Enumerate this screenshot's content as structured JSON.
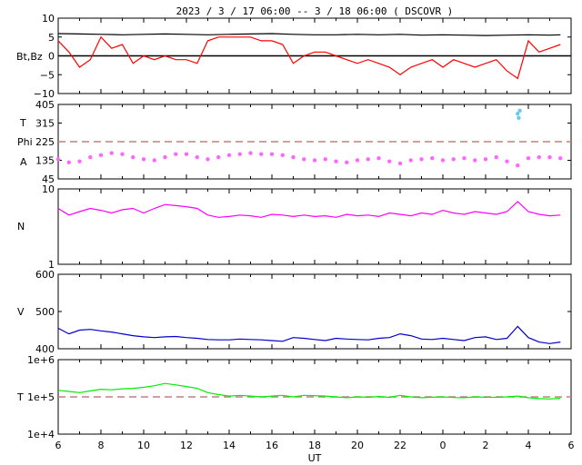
{
  "chart_data": {
    "type": "line",
    "title": "2023 /  3 / 17  06:00 -- 3 / 18  06:00 ( DSCOVR )",
    "xlabel": "UT",
    "x_ticks": [
      "6",
      "8",
      "10",
      "12",
      "14",
      "16",
      "18",
      "20",
      "22",
      "0",
      "2",
      "4",
      "6"
    ],
    "x_range_hours": [
      6,
      30
    ],
    "panels": [
      {
        "id": "mag",
        "ylabel": "Bt,Bz",
        "ylim": [
          -10,
          10
        ],
        "yticks": [
          "10",
          "5",
          "0",
          "−5",
          "−10"
        ],
        "ytick_values": [
          10,
          5,
          0,
          -5,
          -10
        ],
        "reference_lines": [
          {
            "y": 0,
            "style": "solid",
            "color": "#000000"
          }
        ],
        "series": [
          {
            "name": "Bt",
            "color": "#000000",
            "x": [
              6,
              7,
              8,
              9,
              10,
              11,
              12,
              13,
              14,
              15,
              16,
              17,
              18,
              19,
              20,
              21,
              22,
              23,
              24,
              25,
              26,
              27,
              28,
              29,
              29.5
            ],
            "values": [
              5.9,
              5.8,
              5.7,
              5.6,
              5.7,
              5.8,
              5.7,
              5.6,
              5.7,
              5.8,
              5.9,
              5.7,
              5.6,
              5.6,
              5.7,
              5.6,
              5.7,
              5.5,
              5.6,
              5.5,
              5.4,
              5.5,
              5.6,
              5.5,
              5.6
            ]
          },
          {
            "name": "Bz",
            "color": "#ff0000",
            "x": [
              6,
              6.5,
              7,
              7.5,
              8,
              8.5,
              9,
              9.5,
              10,
              10.5,
              11,
              11.5,
              12,
              12.5,
              13,
              13.5,
              14,
              14.5,
              15,
              15.5,
              16,
              16.5,
              17,
              17.5,
              18,
              18.5,
              19,
              19.5,
              20,
              20.5,
              21,
              21.5,
              22,
              22.5,
              23,
              23.5,
              24,
              24.5,
              25,
              25.5,
              26,
              26.5,
              27,
              27.5,
              28,
              28.5,
              29,
              29.5
            ],
            "values": [
              4,
              1,
              -3,
              -1,
              5,
              2,
              3,
              -2,
              0,
              -1,
              0,
              -1,
              -1,
              -2,
              4,
              5,
              5,
              5,
              5,
              4,
              4,
              3,
              -2,
              0,
              1,
              1,
              0,
              -1,
              -2,
              -1,
              -2,
              -3,
              -5,
              -3,
              -2,
              -1,
              -3,
              -1,
              -2,
              -3,
              -2,
              -1,
              -4,
              -6,
              4,
              1,
              2,
              3
            ]
          }
        ]
      },
      {
        "id": "angle",
        "ylabel_top": "T",
        "ylabel_mid": "Phi",
        "ylabel_bot": "A",
        "ylim": [
          45,
          405
        ],
        "yticks": [
          "405",
          "315",
          "225",
          "135",
          "45"
        ],
        "ytick_values": [
          405,
          315,
          225,
          135,
          45
        ],
        "reference_lines": [
          {
            "y": 225,
            "style": "dashed",
            "color": "#c08080"
          }
        ],
        "series": [
          {
            "name": "Phi",
            "color": "#ff66ff",
            "style": "dots",
            "x": [
              6,
              6.5,
              7,
              7.5,
              8,
              8.5,
              9,
              9.5,
              10,
              10.5,
              11,
              11.5,
              12,
              12.5,
              13,
              13.5,
              14,
              14.5,
              15,
              15.5,
              16,
              16.5,
              17,
              17.5,
              18,
              18.5,
              19,
              19.5,
              20,
              20.5,
              21,
              21.5,
              22,
              22.5,
              23,
              23.5,
              24,
              24.5,
              25,
              25.5,
              26,
              26.5,
              27,
              27.5,
              28,
              28.5,
              29,
              29.5
            ],
            "values": [
              140,
              125,
              130,
              150,
              160,
              170,
              165,
              150,
              140,
              135,
              150,
              165,
              165,
              150,
              140,
              150,
              160,
              165,
              170,
              165,
              165,
              160,
              150,
              140,
              135,
              140,
              130,
              125,
              135,
              140,
              145,
              130,
              120,
              135,
              140,
              145,
              135,
              140,
              145,
              135,
              140,
              150,
              130,
              110,
              145,
              150,
              150,
              145
            ]
          },
          {
            "name": "T",
            "color": "#66ccee",
            "style": "dots",
            "x": [
              27.5,
              27.55,
              27.6
            ],
            "values": [
              360,
              340,
              375
            ]
          }
        ]
      },
      {
        "id": "density",
        "ylabel": "N",
        "scale": "log",
        "ylim": [
          1,
          10
        ],
        "yticks": [
          "10",
          "1"
        ],
        "ytick_values": [
          10,
          1
        ],
        "series": [
          {
            "name": "N",
            "color": "#ff00ff",
            "x": [
              6,
              6.5,
              7,
              7.5,
              8,
              8.5,
              9,
              9.5,
              10,
              10.5,
              11,
              11.5,
              12,
              12.5,
              13,
              13.5,
              14,
              14.5,
              15,
              15.5,
              16,
              16.5,
              17,
              17.5,
              18,
              18.5,
              19,
              19.5,
              20,
              20.5,
              21,
              21.5,
              22,
              22.5,
              23,
              23.5,
              24,
              24.5,
              25,
              25.5,
              26,
              26.5,
              27,
              27.5,
              28,
              28.5,
              29,
              29.5
            ],
            "values": [
              5.5,
              4.5,
              5.0,
              5.5,
              5.2,
              4.8,
              5.3,
              5.5,
              4.8,
              5.5,
              6.2,
              6.0,
              5.8,
              5.5,
              4.5,
              4.2,
              4.3,
              4.5,
              4.4,
              4.2,
              4.6,
              4.5,
              4.3,
              4.5,
              4.3,
              4.4,
              4.2,
              4.6,
              4.4,
              4.5,
              4.3,
              4.8,
              4.6,
              4.4,
              4.8,
              4.6,
              5.2,
              4.8,
              4.6,
              5.0,
              4.8,
              4.6,
              5.0,
              6.8,
              5.0,
              4.6,
              4.4,
              4.5
            ]
          }
        ]
      },
      {
        "id": "velocity",
        "ylabel": "V",
        "ylim": [
          400,
          600
        ],
        "yticks": [
          "600",
          "500",
          "400"
        ],
        "ytick_values": [
          600,
          500,
          400
        ],
        "series": [
          {
            "name": "V",
            "color": "#0000cc",
            "x": [
              6,
              6.5,
              7,
              7.5,
              8,
              8.5,
              9,
              9.5,
              10,
              10.5,
              11,
              11.5,
              12,
              12.5,
              13,
              13.5,
              14,
              14.5,
              15,
              15.5,
              16,
              16.5,
              17,
              17.5,
              18,
              18.5,
              19,
              19.5,
              20,
              20.5,
              21,
              21.5,
              22,
              22.5,
              23,
              23.5,
              24,
              24.5,
              25,
              25.5,
              26,
              26.5,
              27,
              27.5,
              28,
              28.5,
              29,
              29.5
            ],
            "values": [
              455,
              440,
              450,
              452,
              448,
              445,
              440,
              435,
              432,
              430,
              432,
              433,
              430,
              428,
              425,
              424,
              424,
              426,
              425,
              424,
              422,
              420,
              430,
              428,
              425,
              422,
              428,
              426,
              425,
              424,
              428,
              430,
              440,
              435,
              426,
              425,
              428,
              425,
              422,
              430,
              432,
              425,
              428,
              460,
              430,
              418,
              414,
              418
            ]
          }
        ]
      },
      {
        "id": "temperature",
        "ylabel": "T",
        "scale": "log",
        "ylim": [
          10000,
          1000000
        ],
        "yticks": [
          "1e+6",
          "1e+5",
          "1e+4"
        ],
        "ytick_values": [
          1000000,
          100000,
          10000
        ],
        "reference_lines": [
          {
            "y": 100000,
            "style": "dashed",
            "color": "#c08080"
          }
        ],
        "series": [
          {
            "name": "T",
            "color": "#00ee00",
            "x": [
              6,
              6.5,
              7,
              7.5,
              8,
              8.5,
              9,
              9.5,
              10,
              10.5,
              11,
              11.5,
              12,
              12.5,
              13,
              13.5,
              14,
              14.5,
              15,
              15.5,
              16,
              16.5,
              17,
              17.5,
              18,
              18.5,
              19,
              19.5,
              20,
              20.5,
              21,
              21.5,
              22,
              22.5,
              23,
              23.5,
              24,
              24.5,
              25,
              25.5,
              26,
              26.5,
              27,
              27.5,
              28,
              28.5,
              29,
              29.5
            ],
            "values": [
              150000,
              140000,
              130000,
              145000,
              160000,
              155000,
              165000,
              170000,
              180000,
              200000,
              230000,
              210000,
              190000,
              170000,
              130000,
              115000,
              105000,
              110000,
              105000,
              100000,
              105000,
              110000,
              100000,
              110000,
              108000,
              105000,
              100000,
              95000,
              100000,
              98000,
              102000,
              97000,
              110000,
              100000,
              95000,
              98000,
              100000,
              96000,
              95000,
              100000,
              98000,
              97000,
              100000,
              105000,
              95000,
              90000,
              88000,
              92000
            ]
          }
        ]
      }
    ],
    "grid": false,
    "legend": "none"
  }
}
